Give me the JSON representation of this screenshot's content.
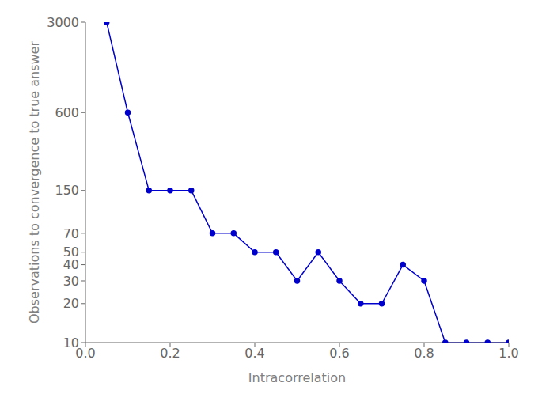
{
  "chart_data": {
    "type": "line",
    "x": [
      0.05,
      0.1,
      0.15,
      0.2,
      0.25,
      0.3,
      0.35,
      0.4,
      0.45,
      0.5,
      0.55,
      0.6,
      0.65,
      0.7,
      0.75,
      0.8,
      0.85,
      0.9,
      0.95,
      1.0
    ],
    "values": [
      3000,
      600,
      150,
      150,
      150,
      70,
      70,
      50,
      50,
      30,
      50,
      30,
      20,
      20,
      40,
      30,
      10,
      10,
      10,
      10
    ],
    "color": "#0000CD",
    "marker": "circle",
    "xlabel": "Intracorrelation",
    "ylabel": "Observations to convergence to true answer",
    "xlim": [
      0,
      1
    ],
    "ylim": [
      10,
      3000
    ],
    "xticks": [
      {
        "value": 0,
        "label": "0.0"
      },
      0.2,
      0.4,
      0.6,
      0.8,
      {
        "value": 1,
        "label": "1.0"
      }
    ],
    "yticks": [
      10,
      20,
      30,
      40,
      50,
      70,
      150,
      600,
      3000
    ],
    "log": "y",
    "grid": false
  }
}
